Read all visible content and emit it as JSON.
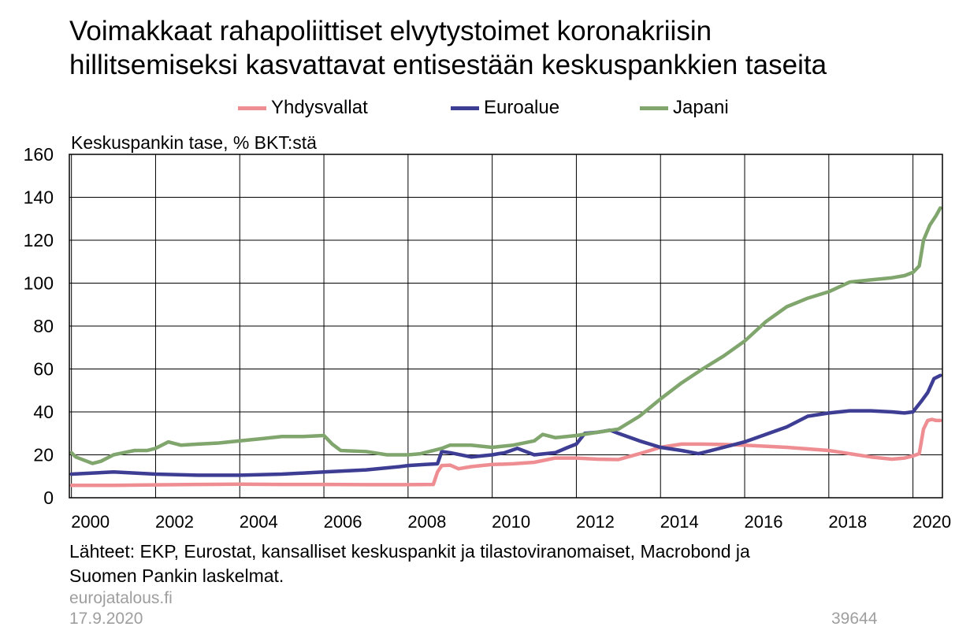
{
  "title_lines": [
    "Voimakkaat rahapoliittiset elvytystoimet koronakriisin",
    "hillitsemiseksi kasvattavat entisestään keskuspankkien taseita"
  ],
  "legend": [
    {
      "label": "Yhdysvallat",
      "color": "#EE8E93"
    },
    {
      "label": "Euroalue",
      "color": "#3D3D94"
    },
    {
      "label": "Japani",
      "color": "#80A66E"
    }
  ],
  "footer": {
    "source_lines": [
      "Lähteet: EKP, Eurostat, kansalliset keskuspankit ja tilastoviranomaiset, Macrobond ja",
      "Suomen Pankin laskelmat."
    ],
    "site": "eurojatalous.fi",
    "date": "17.9.2020",
    "code": "39644"
  },
  "chart_data": {
    "type": "line",
    "ylabel": "Keskuspankin tase, % BKT:stä",
    "ylim": [
      0,
      160
    ],
    "yticks": [
      0,
      20,
      40,
      60,
      80,
      100,
      120,
      140,
      160
    ],
    "xlim": [
      1999.95,
      2020.7
    ],
    "xticks": [
      2000,
      2002,
      2004,
      2006,
      2008,
      2010,
      2012,
      2014,
      2016,
      2018,
      2020
    ],
    "xtick_labels": [
      "2000",
      "2002",
      "2004",
      "2006",
      "2008",
      "2010",
      "2012",
      "2014",
      "2016",
      "2018",
      "2020"
    ],
    "grid": true,
    "legend_position": "top",
    "series": [
      {
        "name": "Yhdysvallat",
        "color": "#EE8E93",
        "x": [
          2000.0,
          2001.0,
          2002.0,
          2003.0,
          2004.0,
          2005.0,
          2006.0,
          2007.0,
          2008.0,
          2008.6,
          2008.7,
          2008.8,
          2009.0,
          2009.2,
          2009.5,
          2010.0,
          2010.5,
          2011.0,
          2011.5,
          2012.0,
          2012.5,
          2013.0,
          2013.5,
          2014.0,
          2014.5,
          2015.0,
          2015.5,
          2016.0,
          2017.0,
          2018.0,
          2019.0,
          2019.5,
          2019.8,
          2020.0,
          2020.15,
          2020.25,
          2020.35,
          2020.45,
          2020.55,
          2020.65
        ],
        "y": [
          5.8,
          5.8,
          6.0,
          6.2,
          6.3,
          6.2,
          6.2,
          6.1,
          6.1,
          6.2,
          12.0,
          15.0,
          15.2,
          13.5,
          14.5,
          15.5,
          15.8,
          16.5,
          18.5,
          18.5,
          18.0,
          17.8,
          20.5,
          23.5,
          25.0,
          25.0,
          24.8,
          24.5,
          23.5,
          22.0,
          19.0,
          18.0,
          18.5,
          19.5,
          20.5,
          32.0,
          36.0,
          36.5,
          36.0,
          36.0
        ]
      },
      {
        "name": "Euroalue",
        "color": "#3D3D94",
        "x": [
          2000.0,
          2001.0,
          2002.0,
          2003.0,
          2004.0,
          2005.0,
          2006.0,
          2007.0,
          2007.8,
          2008.0,
          2008.4,
          2008.7,
          2008.8,
          2009.0,
          2009.5,
          2010.0,
          2010.3,
          2010.6,
          2011.0,
          2011.5,
          2011.8,
          2012.0,
          2012.2,
          2012.5,
          2012.8,
          2013.0,
          2013.5,
          2014.0,
          2014.5,
          2014.9,
          2015.0,
          2015.5,
          2016.0,
          2016.5,
          2017.0,
          2017.5,
          2018.0,
          2018.5,
          2019.0,
          2019.5,
          2019.8,
          2020.0,
          2020.2,
          2020.35,
          2020.5,
          2020.65
        ],
        "y": [
          11.0,
          12.0,
          11.0,
          10.5,
          10.5,
          11.0,
          12.0,
          13.0,
          14.5,
          15.0,
          15.5,
          15.8,
          21.5,
          21.0,
          19.0,
          20.0,
          21.0,
          23.0,
          20.0,
          21.0,
          23.5,
          25.0,
          30.0,
          30.5,
          31.5,
          30.0,
          26.5,
          23.5,
          22.0,
          20.5,
          21.0,
          23.5,
          26.0,
          29.5,
          33.0,
          38.0,
          39.5,
          40.5,
          40.5,
          40.0,
          39.5,
          40.0,
          45.0,
          49.0,
          55.5,
          57.0
        ]
      },
      {
        "name": "Japani",
        "color": "#80A66E",
        "x": [
          2000.0,
          2000.1,
          2000.3,
          2000.5,
          2000.7,
          2001.0,
          2001.5,
          2001.8,
          2002.0,
          2002.3,
          2002.6,
          2003.0,
          2003.5,
          2004.0,
          2004.5,
          2005.0,
          2005.5,
          2006.0,
          2006.2,
          2006.4,
          2007.0,
          2007.5,
          2008.0,
          2008.3,
          2008.8,
          2009.0,
          2009.5,
          2010.0,
          2010.5,
          2011.0,
          2011.2,
          2011.5,
          2012.0,
          2012.5,
          2013.0,
          2013.5,
          2014.0,
          2014.5,
          2015.0,
          2015.5,
          2016.0,
          2016.5,
          2017.0,
          2017.5,
          2018.0,
          2018.5,
          2019.0,
          2019.5,
          2019.8,
          2020.0,
          2020.15,
          2020.25,
          2020.4,
          2020.55,
          2020.65
        ],
        "y": [
          21.0,
          19.0,
          17.5,
          16.0,
          17.0,
          20.0,
          22.0,
          22.0,
          23.0,
          26.0,
          24.5,
          25.0,
          25.5,
          26.5,
          27.5,
          28.5,
          28.5,
          29.0,
          25.0,
          22.0,
          21.5,
          20.0,
          20.0,
          20.5,
          23.0,
          24.5,
          24.5,
          23.5,
          24.5,
          26.5,
          29.5,
          28.0,
          29.0,
          30.5,
          32.0,
          38.0,
          46.0,
          53.5,
          60.0,
          66.0,
          73.0,
          82.0,
          89.0,
          93.0,
          96.0,
          100.5,
          101.5,
          102.5,
          103.5,
          105.0,
          108.0,
          120.0,
          127.0,
          131.5,
          135.0
        ]
      }
    ]
  }
}
